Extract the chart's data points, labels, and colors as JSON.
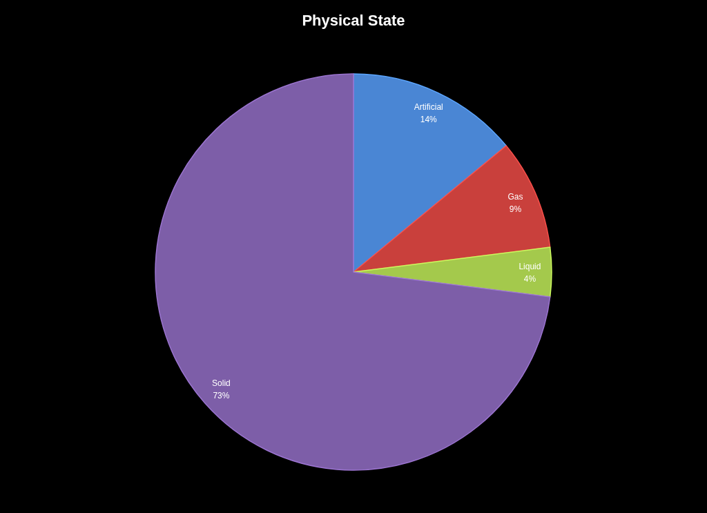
{
  "chart_data": {
    "type": "pie",
    "title": "Physical State",
    "categories": [
      "Artificial",
      "Gas",
      "Liquid",
      "Solid"
    ],
    "values": [
      14,
      9,
      4,
      73
    ],
    "colors": [
      "#4a86d4",
      "#c9403c",
      "#a4c94c",
      "#7d5ea8"
    ],
    "value_labels": [
      "14%",
      "9%",
      "4%",
      "73%"
    ]
  }
}
